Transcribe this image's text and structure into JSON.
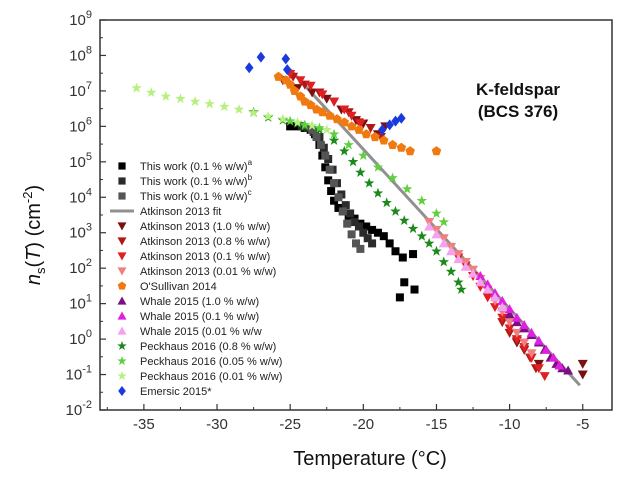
{
  "chart_data": {
    "type": "scatter",
    "title": "",
    "xlabel": "Temperature (°C)",
    "ylabel_parts": {
      "n": "n",
      "sub": "s",
      "mid": "(",
      "T": "T",
      "end": ") (cm",
      "sup": "-2",
      "close": ")"
    },
    "xlim": [
      -38,
      -3
    ],
    "ylim_log10": [
      -2,
      9
    ],
    "y_scale": "log",
    "x_ticks": [
      -35,
      -30,
      -25,
      -20,
      -15,
      -10,
      -5
    ],
    "x_tick_labels": [
      "-35",
      "-30",
      "-25",
      "-20",
      "-15",
      "-10",
      "-5"
    ],
    "y_ticks_log10": [
      -2,
      -1,
      0,
      1,
      2,
      3,
      4,
      5,
      6,
      7,
      8,
      9
    ],
    "y_tick_mantissa": "10",
    "y_tick_exponents": [
      "-2",
      "-1",
      "0",
      "1",
      "2",
      "3",
      "4",
      "5",
      "6",
      "7",
      "8",
      "9"
    ],
    "annotation": [
      "K-feldspar",
      "(BCS 376)"
    ],
    "series": [
      {
        "name": "This work (0.1 % w/w)",
        "sup": "a",
        "marker": "square",
        "color": "#000000",
        "points": [
          [
            -25.0,
            1000000.0
          ],
          [
            -24.5,
            1000000.0
          ],
          [
            -24.0,
            900000.0
          ],
          [
            -23.6,
            800000.0
          ],
          [
            -23.3,
            600000.0
          ],
          [
            -23.0,
            300000.0
          ],
          [
            -22.8,
            150000.0
          ],
          [
            -22.6,
            70000.0
          ],
          [
            -22.4,
            30000.0
          ],
          [
            -22.2,
            15000.0
          ],
          [
            -22.0,
            8000.0
          ],
          [
            -21.7,
            5000.0
          ],
          [
            -21.4,
            4000.0
          ],
          [
            -21.0,
            3000.0
          ],
          [
            -20.6,
            2500.0
          ],
          [
            -20.2,
            1800.0
          ],
          [
            -19.8,
            1500.0
          ],
          [
            -19.4,
            1200.0
          ],
          [
            -19.0,
            1000.0
          ],
          [
            -18.6,
            800.0
          ],
          [
            -18.2,
            500.0
          ],
          [
            -17.8,
            300.0
          ],
          [
            -17.3,
            200.0
          ],
          [
            -16.6,
            250.0
          ],
          [
            -17.5,
            15
          ],
          [
            -16.5,
            25
          ],
          [
            -17.2,
            40
          ]
        ]
      },
      {
        "name": "This work (0.1 % w/w)",
        "sup": "b",
        "marker": "square",
        "color": "#2b2b2b",
        "points": [
          [
            -24.2,
            1000000.0
          ],
          [
            -23.8,
            900000.0
          ],
          [
            -23.4,
            700000.0
          ],
          [
            -23.0,
            500000.0
          ],
          [
            -22.7,
            250000.0
          ],
          [
            -22.4,
            120000.0
          ],
          [
            -22.1,
            60000.0
          ],
          [
            -21.8,
            25000.0
          ],
          [
            -21.5,
            12000.0
          ],
          [
            -21.2,
            6000.0
          ],
          [
            -20.9,
            3500.0
          ],
          [
            -20.6,
            2000.0
          ],
          [
            -20.3,
            1500.0
          ],
          [
            -20.0,
            1000.0
          ],
          [
            -19.7,
            700.0
          ],
          [
            -19.4,
            500.0
          ]
        ]
      },
      {
        "name": "This work (0.1 % w/w)",
        "sup": "c",
        "marker": "square",
        "color": "#555555",
        "points": [
          [
            -23.5,
            800000.0
          ],
          [
            -23.2,
            500000.0
          ],
          [
            -22.9,
            300000.0
          ],
          [
            -22.6,
            150000.0
          ],
          [
            -22.3,
            60000.0
          ],
          [
            -22.0,
            25000.0
          ],
          [
            -21.7,
            10000.0
          ],
          [
            -21.4,
            4000.0
          ],
          [
            -21.1,
            1800.0
          ],
          [
            -20.8,
            900.0
          ],
          [
            -20.5,
            500.0
          ],
          [
            -20.2,
            350.0
          ]
        ]
      },
      {
        "name": "Atkinson 2013 fit",
        "marker": "line",
        "color": "#909090",
        "points": [
          [
            -25.0,
            40000000.0
          ],
          [
            -5.2,
            0.05
          ]
        ]
      },
      {
        "name": "Atkinson 2013 (1.0 % w/w)",
        "marker": "triangle-down",
        "color": "#7a1010",
        "points": [
          [
            -25.5,
            20000000.0
          ],
          [
            -24.5,
            12000000.0
          ],
          [
            -23.5,
            9000000.0
          ],
          [
            -22.5,
            6000000.0
          ],
          [
            -21.5,
            3000000.0
          ],
          [
            -20.5,
            1500000.0
          ],
          [
            -20.0,
            1200000.0
          ],
          [
            -19.0,
            600000.0
          ],
          [
            -18.5,
            1000000.0
          ],
          [
            -9.5,
            0.8
          ],
          [
            -9.0,
            0.5
          ],
          [
            -8.5,
            0.3
          ],
          [
            -8.0,
            0.2
          ],
          [
            -5.0,
            0.2
          ],
          [
            -5.0,
            0.1
          ]
        ]
      },
      {
        "name": "Atkinson 2013 (0.8 % w/w)",
        "marker": "triangle-down",
        "color": "#b01818",
        "points": [
          [
            -24.8,
            25000000.0
          ],
          [
            -24.0,
            15000000.0
          ],
          [
            -23.0,
            9000000.0
          ],
          [
            -22.0,
            5000000.0
          ],
          [
            -21.0,
            2500000.0
          ],
          [
            -20.3,
            1300000.0
          ],
          [
            -19.5,
            900000.0
          ],
          [
            -18.8,
            500000.0
          ],
          [
            -10.5,
            3
          ],
          [
            -10.0,
            1.5
          ],
          [
            -9.5,
            0.9
          ],
          [
            -9.0,
            0.5
          ],
          [
            -8.6,
            0.3
          ],
          [
            -8.2,
            0.15
          ]
        ]
      },
      {
        "name": "Atkinson 2013 (0.1 % w/w)",
        "marker": "triangle-down",
        "color": "#e02020",
        "points": [
          [
            -25.0,
            30000000.0
          ],
          [
            -24.3,
            20000000.0
          ],
          [
            -23.6,
            14000000.0
          ],
          [
            -22.8,
            8000000.0
          ],
          [
            -22.0,
            5000000.0
          ],
          [
            -21.3,
            3000000.0
          ],
          [
            -20.8,
            2000000.0
          ],
          [
            -20.2,
            1200000.0
          ],
          [
            -13.5,
            200
          ],
          [
            -13.0,
            120
          ],
          [
            -12.5,
            60
          ],
          [
            -12.0,
            30
          ],
          [
            -11.5,
            15
          ],
          [
            -11.0,
            8
          ],
          [
            -10.5,
            4
          ],
          [
            -10.0,
            2
          ],
          [
            -9.5,
            1
          ],
          [
            -9.0,
            0.6
          ],
          [
            -8.5,
            0.3
          ],
          [
            -8.0,
            0.15
          ],
          [
            -7.6,
            0.09
          ]
        ]
      },
      {
        "name": "Atkinson 2013 (0.01 % w/w)",
        "marker": "triangle-down",
        "color": "#f08080",
        "points": [
          [
            -15.5,
            2000
          ],
          [
            -15.0,
            1200
          ],
          [
            -14.5,
            700
          ],
          [
            -14.0,
            400
          ],
          [
            -13.5,
            250
          ],
          [
            -13.0,
            150
          ],
          [
            -12.5,
            90
          ],
          [
            -12.0,
            50
          ],
          [
            -11.5,
            25
          ],
          [
            -11.0,
            12
          ],
          [
            -10.5,
            6
          ],
          [
            -10.0,
            3
          ],
          [
            -9.5,
            1.5
          ],
          [
            -9.0,
            0.8
          ],
          [
            -8.5,
            0.4
          ]
        ]
      },
      {
        "name": "O'Sullivan 2014",
        "marker": "pentagon",
        "color": "#f07a10",
        "points": [
          [
            -25.8,
            25000000.0
          ],
          [
            -25.3,
            20000000.0
          ],
          [
            -25.0,
            15000000.0
          ],
          [
            -24.7,
            10000000.0
          ],
          [
            -24.3,
            7000000.0
          ],
          [
            -24.0,
            5000000.0
          ],
          [
            -23.6,
            4000000.0
          ],
          [
            -23.2,
            3000000.0
          ],
          [
            -22.8,
            2500000.0
          ],
          [
            -22.3,
            2000000.0
          ],
          [
            -21.8,
            1600000.0
          ],
          [
            -21.3,
            1300000.0
          ],
          [
            -20.8,
            1000000.0
          ],
          [
            -20.3,
            800000.0
          ],
          [
            -19.8,
            600000.0
          ],
          [
            -19.2,
            500000.0
          ],
          [
            -18.6,
            400000.0
          ],
          [
            -18.0,
            300000.0
          ],
          [
            -17.4,
            250000.0
          ],
          [
            -16.8,
            200000.0
          ],
          [
            -15.0,
            200000.0
          ]
        ]
      },
      {
        "name": "Whale 2015 (1.0 % w/w)",
        "marker": "triangle-up",
        "color": "#7b1180",
        "points": [
          [
            -10.5,
            8
          ],
          [
            -10.0,
            5
          ],
          [
            -9.5,
            3
          ],
          [
            -9.0,
            2
          ],
          [
            -8.5,
            1.3
          ],
          [
            -8.0,
            0.8
          ],
          [
            -7.6,
            0.5
          ],
          [
            -7.2,
            0.3
          ],
          [
            -6.8,
            0.2
          ],
          [
            -6.4,
            0.15
          ],
          [
            -6.0,
            0.13
          ]
        ]
      },
      {
        "name": "Whale 2015 (0.1 % w/w)",
        "marker": "triangle-up",
        "color": "#e020e0",
        "points": [
          [
            -12.0,
            60
          ],
          [
            -11.5,
            35
          ],
          [
            -11.0,
            20
          ],
          [
            -10.5,
            12
          ],
          [
            -10.0,
            7
          ],
          [
            -9.5,
            4
          ],
          [
            -9.0,
            2.5
          ],
          [
            -8.5,
            1.5
          ],
          [
            -8.0,
            0.9
          ],
          [
            -7.5,
            0.5
          ],
          [
            -7.0,
            0.3
          ],
          [
            -6.6,
            0.18
          ]
        ]
      },
      {
        "name": "Whale 2015 (0.01 % w/w",
        "marker": "triangle-up",
        "color": "#f6a0f0",
        "points": [
          [
            -15.5,
            1500
          ],
          [
            -15.0,
            900
          ],
          [
            -14.5,
            500
          ],
          [
            -14.0,
            300
          ],
          [
            -13.5,
            180
          ],
          [
            -13.0,
            110
          ],
          [
            -12.5,
            70
          ],
          [
            -12.0,
            40
          ],
          [
            -11.5,
            25
          ],
          [
            -11.0,
            15
          ],
          [
            -10.5,
            8
          ]
        ]
      },
      {
        "name": "Peckhaus 2016 (0.8 % w/w)",
        "marker": "star",
        "color": "#1a8a1a",
        "points": [
          [
            -27.5,
            2500000.0
          ],
          [
            -26.5,
            1800000.0
          ],
          [
            -25.5,
            1500000.0
          ],
          [
            -24.5,
            1200000.0
          ],
          [
            -24.0,
            1000000.0
          ],
          [
            -23.0,
            800000.0
          ],
          [
            -22.0,
            400000.0
          ],
          [
            -21.3,
            200000.0
          ],
          [
            -20.7,
            100000.0
          ],
          [
            -20.2,
            50000.0
          ],
          [
            -19.6,
            25000.0
          ],
          [
            -19.0,
            13000.0
          ],
          [
            -18.4,
            7000.0
          ],
          [
            -17.8,
            4000.0
          ],
          [
            -17.2,
            2200.0
          ],
          [
            -16.6,
            1300.0
          ],
          [
            -16.0,
            800
          ],
          [
            -15.5,
            500
          ],
          [
            -15.0,
            300
          ],
          [
            -14.5,
            150
          ],
          [
            -14.0,
            80
          ],
          [
            -13.5,
            40
          ],
          [
            -13.3,
            25
          ]
        ]
      },
      {
        "name": "Peckhaus 2016 (0.05 % w/w)",
        "marker": "star",
        "color": "#60d040",
        "points": [
          [
            -25.0,
            1400000.0
          ],
          [
            -24.0,
            1100000.0
          ],
          [
            -23.0,
            900000.0
          ],
          [
            -22.0,
            600000.0
          ],
          [
            -21.0,
            300000.0
          ],
          [
            -20.0,
            150000.0
          ],
          [
            -19.0,
            70000.0
          ],
          [
            -18.0,
            35000.0
          ],
          [
            -17.0,
            17000.0
          ],
          [
            -16.0,
            8000.0
          ],
          [
            -15.0,
            3500.0
          ],
          [
            -14.5,
            2000.0
          ]
        ]
      },
      {
        "name": "Peckhaus 2016 (0.01 % w/w)",
        "marker": "star",
        "color": "#b8f080",
        "points": [
          [
            -35.5,
            12000000.0
          ],
          [
            -34.5,
            9000000.0
          ],
          [
            -33.5,
            7000000.0
          ],
          [
            -32.5,
            6000000.0
          ],
          [
            -31.5,
            5000000.0
          ],
          [
            -30.5,
            4300000.0
          ],
          [
            -29.5,
            3600000.0
          ],
          [
            -28.5,
            3000000.0
          ],
          [
            -27.5,
            2400000.0
          ],
          [
            -26.5,
            1900000.0
          ],
          [
            -25.5,
            1600000.0
          ],
          [
            -24.5,
            1300000.0
          ],
          [
            -23.5,
            1050000.0
          ],
          [
            -22.5,
            800000.0
          ]
        ]
      },
      {
        "name": "Emersic 2015*",
        "marker": "diamond",
        "color": "#1a3ae0",
        "points": [
          [
            -27.8,
            45000000.0
          ],
          [
            -27.0,
            90000000.0
          ],
          [
            -25.3,
            80000000.0
          ],
          [
            -25.2,
            40000000.0
          ],
          [
            -18.7,
            800000.0
          ],
          [
            -18.2,
            1100000.0
          ],
          [
            -17.8,
            1400000.0
          ],
          [
            -17.4,
            1700000.0
          ]
        ]
      }
    ]
  }
}
